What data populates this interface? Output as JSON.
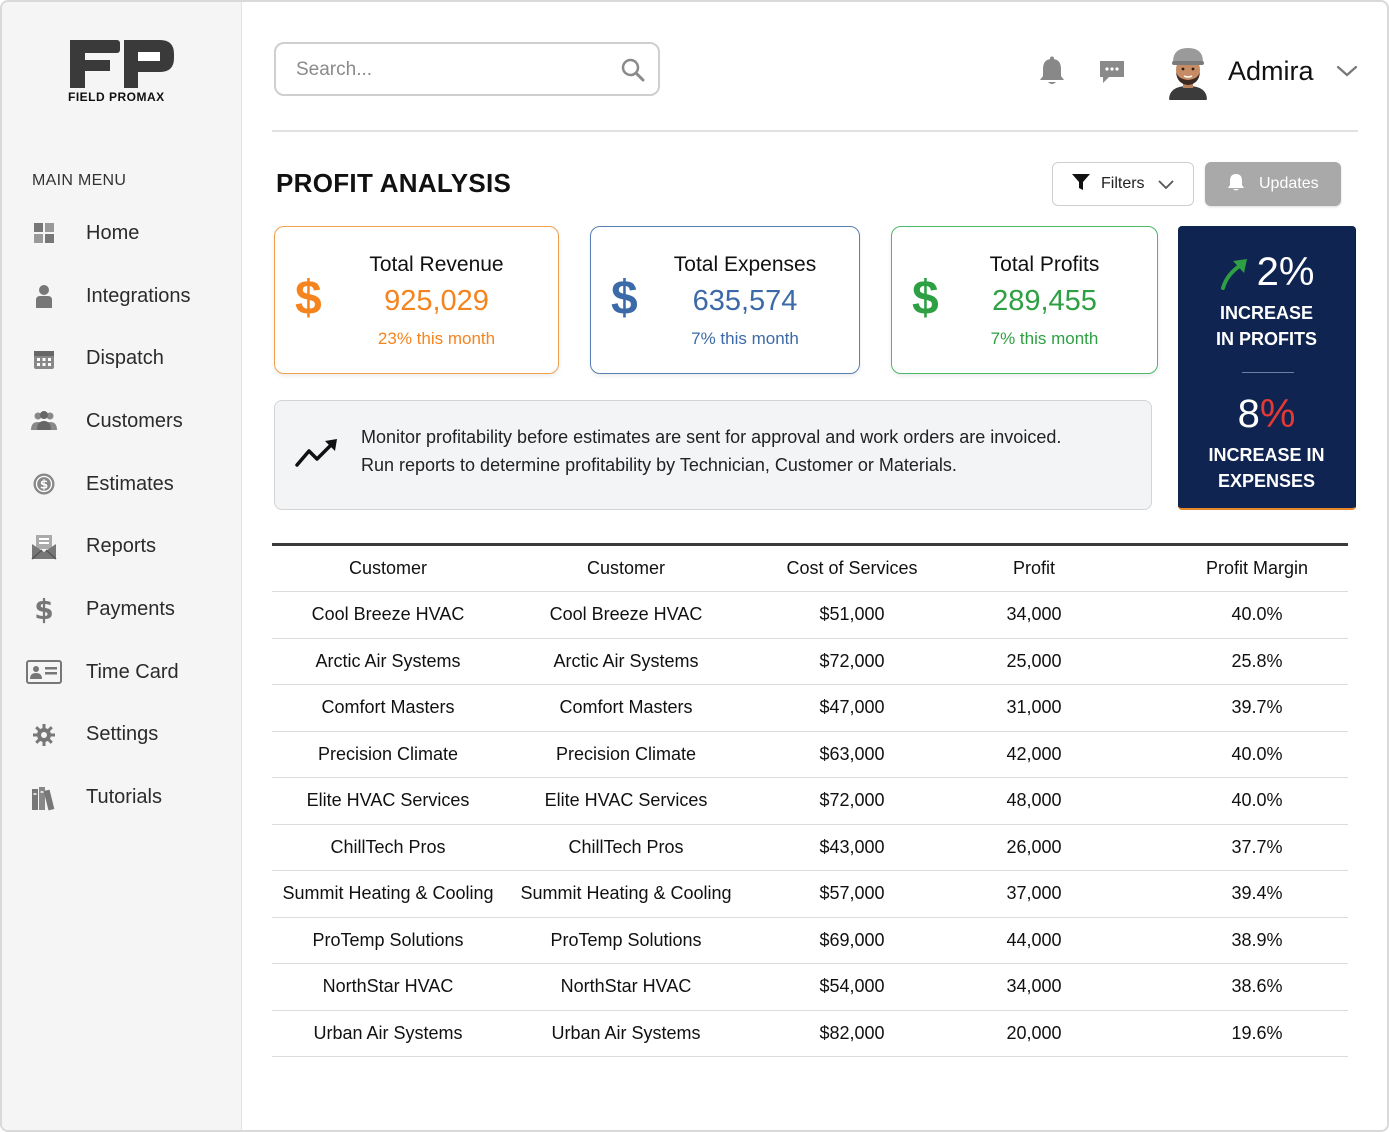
{
  "app": {
    "logo_initials": "FP",
    "logo_text": "FIELD  PROMAX"
  },
  "sidebar": {
    "menu_title": "MAIN MENU",
    "items": [
      {
        "label": "Home",
        "icon": "grid-icon"
      },
      {
        "label": "Integrations",
        "icon": "person-icon"
      },
      {
        "label": "Dispatch",
        "icon": "calendar-icon"
      },
      {
        "label": "Customers",
        "icon": "group-icon"
      },
      {
        "label": "Estimates",
        "icon": "dollar-coin-icon"
      },
      {
        "label": "Reports",
        "icon": "envelope-report-icon"
      },
      {
        "label": "Payments",
        "icon": "dollar-sign-icon"
      },
      {
        "label": "Time Card",
        "icon": "id-card-icon"
      },
      {
        "label": "Settings",
        "icon": "gear-icon"
      },
      {
        "label": "Tutorials",
        "icon": "books-icon"
      }
    ]
  },
  "header": {
    "search_placeholder": "Search...",
    "username": "Admira"
  },
  "page": {
    "title": "PROFIT ANALYSIS",
    "filters_label": "Filters",
    "updates_label": "Updates"
  },
  "cards": {
    "revenue": {
      "title": "Total Revenue",
      "symbol": "$",
      "value": "925,029",
      "sub": "23% this month",
      "color": "#f5841f"
    },
    "expenses": {
      "title": "Total Expenses",
      "symbol": "$",
      "value": "635,574",
      "sub": "7% this month",
      "color": "#3c6aa8"
    },
    "profits": {
      "title": "Total Profits",
      "symbol": "$",
      "value": "289,455",
      "sub": "7% this month",
      "color": "#2ea043"
    }
  },
  "highlight": {
    "profit_pct": "2%",
    "profit_label_1": "INCREASE",
    "profit_label_2": "IN PROFITS",
    "expense_pct_num": "8",
    "expense_pct_sign": "%",
    "expense_label_1": "INCREASE IN",
    "expense_label_2": "EXPENSES",
    "bg_color": "#0f2450"
  },
  "info": {
    "line1": "Monitor profitability before estimates are sent for approval and work orders are invoiced.",
    "line2": "Run reports to determine profitability by Technician, Customer or Materials."
  },
  "table": {
    "headers": [
      "Customer",
      "Customer",
      "Cost of Services",
      "Profit",
      "Profit Margin"
    ],
    "rows": [
      [
        "Cool Breeze HVAC",
        "Cool Breeze HVAC",
        "$51,000",
        "34,000",
        "40.0%"
      ],
      [
        "Arctic Air Systems",
        "Arctic Air Systems",
        "$72,000",
        "25,000",
        "25.8%"
      ],
      [
        "Comfort Masters",
        "Comfort Masters",
        "$47,000",
        "31,000",
        "39.7%"
      ],
      [
        "Precision Climate",
        "Precision Climate",
        "$63,000",
        "42,000",
        "40.0%"
      ],
      [
        "Elite HVAC Services",
        "Elite HVAC Services",
        "$72,000",
        "48,000",
        "40.0%"
      ],
      [
        "ChillTech Pros",
        "ChillTech Pros",
        "$43,000",
        "26,000",
        "37.7%"
      ],
      [
        "Summit Heating & Cooling",
        "Summit Heating & Cooling",
        "$57,000",
        "37,000",
        "39.4%"
      ],
      [
        "ProTemp Solutions",
        "ProTemp Solutions",
        "$69,000",
        "44,000",
        "38.9%"
      ],
      [
        "NorthStar HVAC",
        "NorthStar HVAC",
        "$54,000",
        "34,000",
        "38.6%"
      ],
      [
        "Urban Air Systems",
        "Urban Air Systems",
        "$82,000",
        "20,000",
        "19.6%"
      ]
    ]
  }
}
